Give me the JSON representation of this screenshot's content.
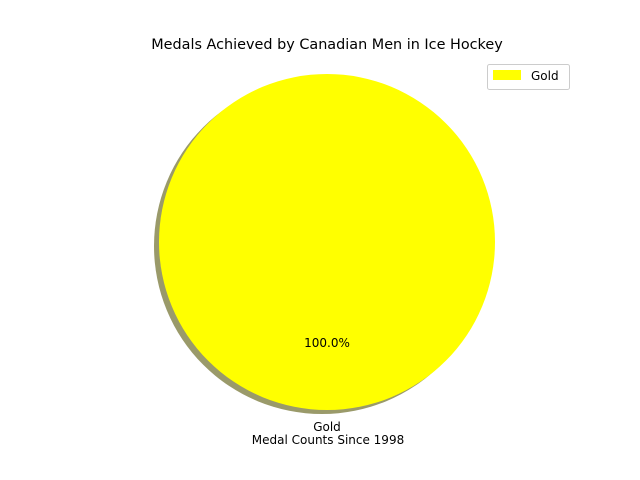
{
  "chart_data": {
    "type": "pie",
    "title": "Medals Achieved by Canadian Men in Ice Hockey",
    "xlabel": "Medal Counts Since 1998",
    "ylabel": "",
    "categories": [
      "Gold"
    ],
    "values": [
      1
    ],
    "percent_labels": [
      "100.0%"
    ],
    "colors": [
      "#ffff00"
    ],
    "shadow": true,
    "legend": {
      "placement": "top-right",
      "entries": [
        "Gold"
      ]
    }
  }
}
